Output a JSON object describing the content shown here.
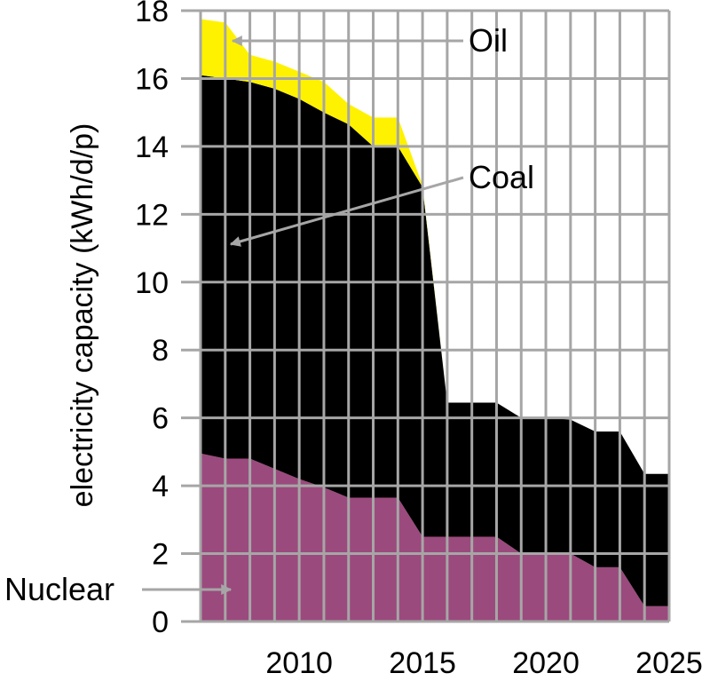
{
  "chart_data": {
    "type": "area",
    "stacked": true,
    "xlabel": "",
    "ylabel": "electricity capacity (kWh/d/p)",
    "xlim": [
      2006,
      2025
    ],
    "ylim": [
      0,
      18
    ],
    "grid": true,
    "x_tick_labels": [
      "2010",
      "2015",
      "2020",
      "2025"
    ],
    "y_tick_labels": [
      "0",
      "2",
      "4",
      "6",
      "8",
      "10",
      "12",
      "14",
      "16",
      "18"
    ],
    "x": [
      2006,
      2007,
      2008,
      2009,
      2010,
      2011,
      2012,
      2013,
      2014,
      2015,
      2016,
      2017,
      2018,
      2019,
      2020,
      2021,
      2022,
      2023,
      2024,
      2025
    ],
    "series": [
      {
        "name": "Nuclear",
        "color": "#9b4a7d",
        "values": [
          4.95,
          4.8,
          4.8,
          4.5,
          4.2,
          3.95,
          3.65,
          3.65,
          3.65,
          2.5,
          2.5,
          2.5,
          2.5,
          2.0,
          2.0,
          2.0,
          1.6,
          1.6,
          0.45,
          0.45
        ]
      },
      {
        "name": "Coal",
        "color": "#000000",
        "values": [
          11.15,
          11.2,
          11.1,
          11.2,
          11.2,
          11.05,
          11.0,
          10.35,
          10.35,
          10.3,
          3.95,
          3.95,
          3.95,
          4.0,
          4.0,
          3.95,
          4.0,
          4.0,
          3.9,
          3.9
        ]
      },
      {
        "name": "Oil",
        "color": "#fff200",
        "values": [
          1.65,
          1.65,
          0.8,
          0.8,
          0.8,
          0.9,
          0.6,
          0.85,
          0.85,
          0.05,
          0.0,
          0.0,
          0.0,
          0.0,
          0.0,
          0.0,
          0.0,
          0.0,
          0.0,
          0.0
        ]
      }
    ],
    "annotations": [
      {
        "text": "Oil",
        "points_to": "Oil"
      },
      {
        "text": "Coal",
        "points_to": "Coal"
      },
      {
        "text": "Nuclear",
        "points_to": "Nuclear"
      }
    ]
  },
  "colors": {
    "grid": "#a6a6a6",
    "arrow": "#a6a6a6"
  }
}
